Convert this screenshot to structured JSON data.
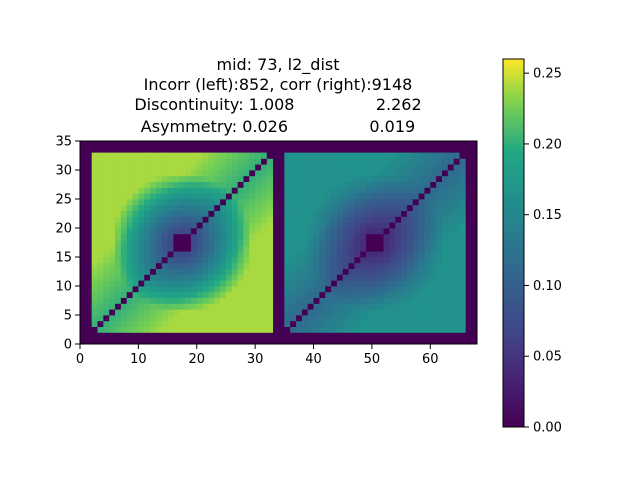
{
  "chart_data": {
    "type": "heatmap",
    "title_lines": [
      "mid: 73, l2_dist",
      "Incorr (left):852, corr (right):9148",
      "Discontinuity: 1.008                2.262",
      "Asymmetry: 0.026                0.019"
    ],
    "xlabel": "",
    "ylabel": "",
    "xlim": [
      0,
      68
    ],
    "ylim": [
      0,
      35
    ],
    "xticks": [
      "0",
      "10",
      "20",
      "30",
      "40",
      "50",
      "60"
    ],
    "yticks": [
      "0",
      "5",
      "10",
      "15",
      "20",
      "25",
      "30",
      "35"
    ],
    "grid": false,
    "colormap": "viridis",
    "color_range": [
      0.0,
      0.26
    ],
    "colorbar_ticks": [
      "0.00",
      "0.05",
      "0.10",
      "0.15",
      "0.20",
      "0.25"
    ],
    "panels": [
      {
        "name": "left",
        "x_range": [
          2,
          33
        ],
        "y_range": [
          2,
          33
        ],
        "edge_value": 0.24,
        "diag_value": 0.0,
        "center": [
          17.5,
          17.5
        ],
        "center_value": 0.0,
        "near_diag_value": 0.2
      },
      {
        "name": "right",
        "x_range": [
          35,
          66
        ],
        "y_range": [
          2,
          33
        ],
        "edge_value": 0.165,
        "diag_value": 0.0,
        "center": [
          50.5,
          17.5
        ],
        "center_value": 0.0,
        "near_diag_value": 0.11
      }
    ]
  }
}
